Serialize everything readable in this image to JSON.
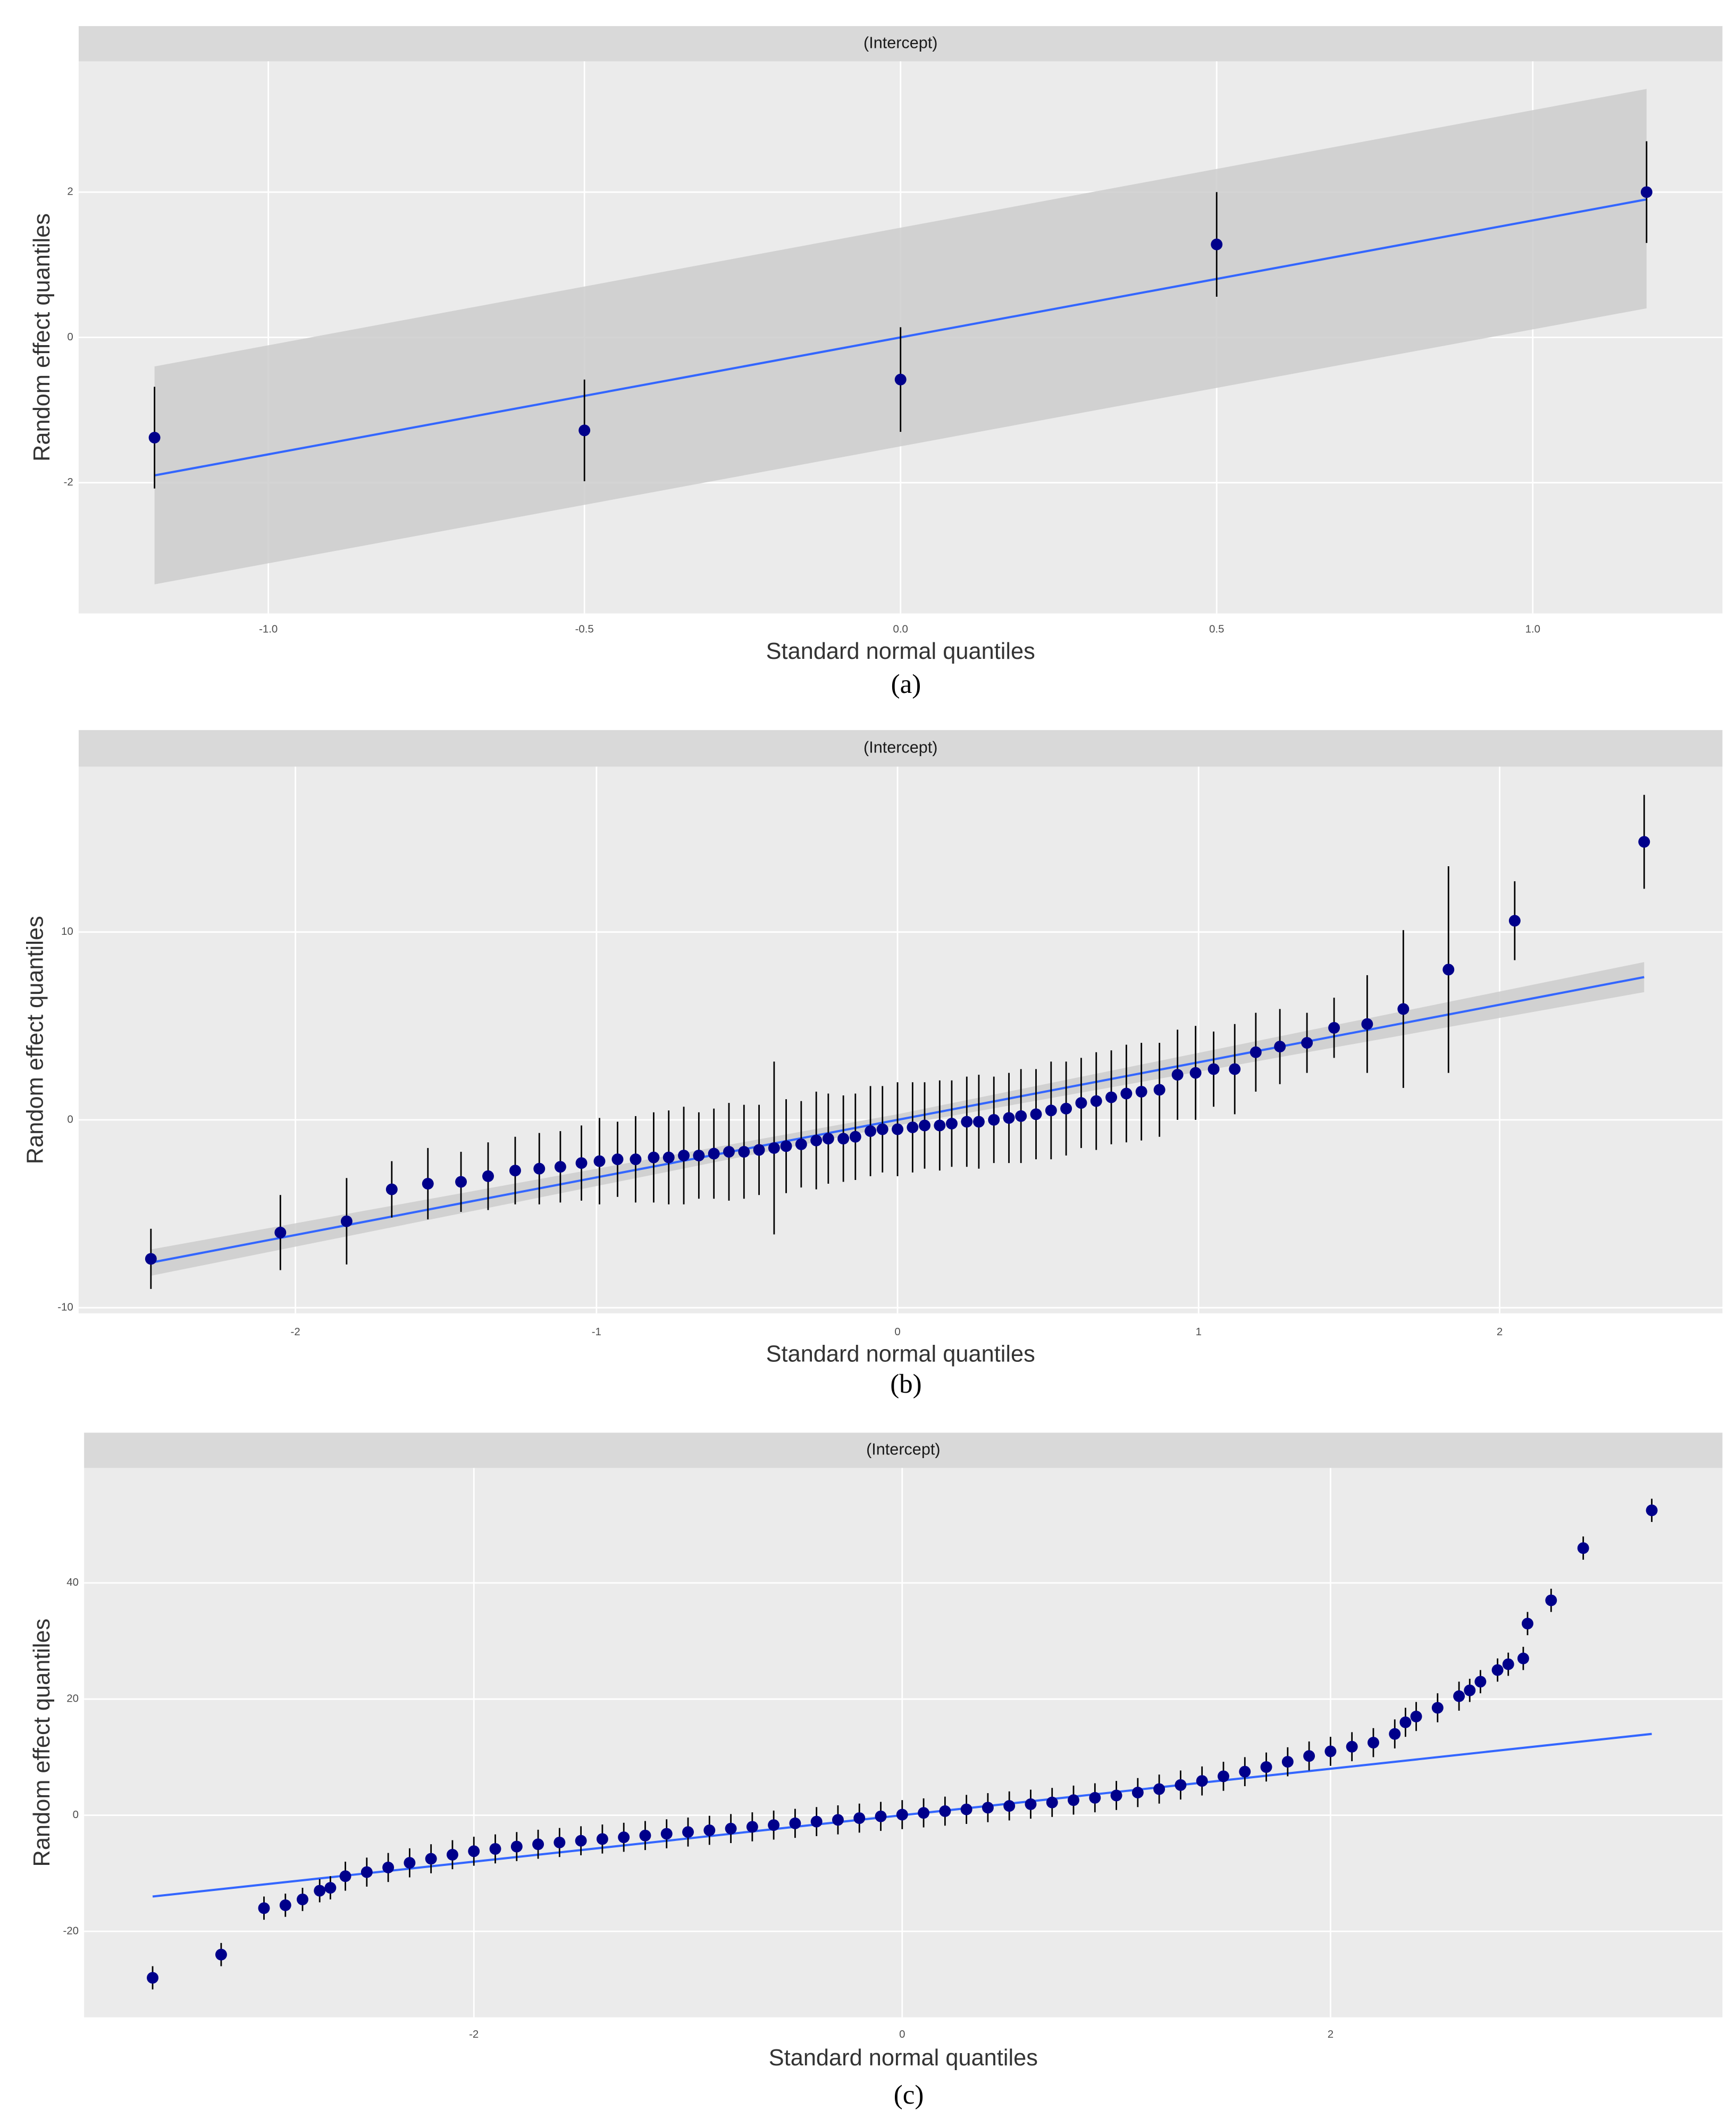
{
  "chart_data": [
    {
      "type": "scatter",
      "title": "(Intercept)",
      "caption": "(a)",
      "x_label": "Standard normal quantiles",
      "y_label": "Random effect quantiles",
      "x": [
        -1.18,
        -0.5,
        0,
        0.5,
        1.18
      ],
      "y": [
        -1.38,
        -1.28,
        -0.58,
        1.28,
        2.0
      ],
      "errors": [
        0.7,
        0.7,
        0.72,
        0.72,
        0.7
      ],
      "fit": {
        "x": [
          -1.18,
          1.18
        ],
        "y": [
          -1.9,
          1.9
        ]
      },
      "band": {
        "x": [
          -1.18,
          1.18
        ],
        "lower": [
          -3.4,
          0.4
        ],
        "upper": [
          -0.4,
          3.42
        ]
      },
      "xlim": [
        -1.3,
        1.3
      ],
      "ylim": [
        -3.8,
        3.8
      ],
      "xticks": [
        {
          "value": -1,
          "label": "-1.0"
        },
        -0.5,
        {
          "value": 0,
          "label": "0.0"
        },
        0.5,
        {
          "value": 1,
          "label": "1.0"
        }
      ],
      "yticks": [
        -2,
        0,
        2
      ],
      "point_color": "#00008b",
      "line_color": "#3366ff",
      "band_color": "#cccccc",
      "grid": true
    },
    {
      "type": "scatter",
      "title": "(Intercept)",
      "caption": "(b)",
      "x_label": "Standard normal quantiles",
      "y_label": "Random effect quantiles",
      "x": [
        -2.48,
        -2.05,
        -1.83,
        -1.68,
        -1.56,
        -1.45,
        -1.36,
        -1.27,
        -1.19,
        -1.12,
        -1.05,
        -0.99,
        -0.93,
        -0.87,
        -0.81,
        -0.76,
        -0.71,
        -0.66,
        -0.61,
        -0.56,
        -0.51,
        -0.46,
        -0.41,
        -0.37,
        -0.32,
        -0.27,
        -0.23,
        -0.18,
        -0.14,
        -0.09,
        -0.05,
        0,
        0.05,
        0.09,
        0.14,
        0.18,
        0.23,
        0.27,
        0.32,
        0.37,
        0.41,
        0.46,
        0.51,
        0.56,
        0.61,
        0.66,
        0.71,
        0.76,
        0.81,
        0.87,
        0.93,
        0.99,
        1.05,
        1.12,
        1.19,
        1.27,
        1.36,
        1.45,
        1.56,
        1.68,
        1.83,
        2.05,
        2.48
      ],
      "y": [
        -7.4,
        -6.0,
        -5.4,
        -3.7,
        -3.4,
        -3.3,
        -3.0,
        -2.7,
        -2.6,
        -2.5,
        -2.3,
        -2.2,
        -2.1,
        -2.1,
        -2.0,
        -2.0,
        -1.9,
        -1.9,
        -1.8,
        -1.7,
        -1.7,
        -1.6,
        -1.5,
        -1.4,
        -1.3,
        -1.1,
        -1.0,
        -1.0,
        -0.9,
        -0.6,
        -0.5,
        -0.5,
        -0.4,
        -0.3,
        -0.3,
        -0.2,
        -0.1,
        -0.1,
        0,
        0.1,
        0.2,
        0.3,
        0.5,
        0.6,
        0.9,
        1.0,
        1.2,
        1.4,
        1.5,
        1.6,
        2.4,
        2.5,
        2.7,
        2.7,
        3.6,
        3.9,
        4.1,
        4.9,
        5.1,
        5.9,
        8.0,
        10.6,
        14.8
      ],
      "errors": [
        1.6,
        2.0,
        2.3,
        1.5,
        1.9,
        1.6,
        1.8,
        1.8,
        1.9,
        1.9,
        2.0,
        2.3,
        2.0,
        2.3,
        2.4,
        2.5,
        2.6,
        2.3,
        2.4,
        2.6,
        2.5,
        2.4,
        4.6,
        2.5,
        2.3,
        2.6,
        2.4,
        2.3,
        2.3,
        2.4,
        2.3,
        2.5,
        2.4,
        2.3,
        2.4,
        2.3,
        2.4,
        2.5,
        2.3,
        2.4,
        2.5,
        2.4,
        2.6,
        2.5,
        2.4,
        2.6,
        2.5,
        2.6,
        2.6,
        2.5,
        2.4,
        2.5,
        2.0,
        2.4,
        2.1,
        2.0,
        1.6,
        1.6,
        2.6,
        4.2,
        5.5,
        2.1,
        2.5
      ],
      "fit": {
        "x": [
          -2.48,
          2.48
        ],
        "y": [
          -7.6,
          7.6
        ]
      },
      "band": {
        "x": [
          -2.48,
          0,
          2.48
        ],
        "lower": [
          -8.3,
          -0.3,
          6.8
        ],
        "upper": [
          -6.9,
          0.3,
          8.4
        ]
      },
      "xlim": [
        -2.72,
        2.74
      ],
      "ylim": [
        -10.3,
        18.8
      ],
      "xticks": [
        -2,
        -1,
        0,
        1,
        2
      ],
      "yticks": [
        -10,
        0,
        10
      ],
      "point_color": "#00008b",
      "line_color": "#3366ff",
      "band_color": "#cccccc",
      "grid": true
    },
    {
      "type": "scatter",
      "title": "(Intercept)",
      "caption": "(c)",
      "x_label": "Standard normal quantiles",
      "y_label": "Random effect quantiles",
      "x": [
        -3.5,
        -3.18,
        -2.98,
        -2.88,
        -2.8,
        -2.72,
        -2.67,
        -2.6,
        -2.5,
        -2.4,
        -2.3,
        -2.2,
        -2.1,
        -2.0,
        -1.9,
        -1.8,
        -1.7,
        -1.6,
        -1.5,
        -1.4,
        -1.3,
        -1.2,
        -1.1,
        -1.0,
        -0.9,
        -0.8,
        -0.7,
        -0.6,
        -0.5,
        -0.4,
        -0.3,
        -0.2,
        -0.1,
        0,
        0.1,
        0.2,
        0.3,
        0.4,
        0.5,
        0.6,
        0.7,
        0.8,
        0.9,
        1.0,
        1.1,
        1.2,
        1.3,
        1.4,
        1.5,
        1.6,
        1.7,
        1.8,
        1.9,
        2.0,
        2.1,
        2.2,
        2.3,
        2.35,
        2.4,
        2.5,
        2.6,
        2.65,
        2.7,
        2.78,
        2.83,
        2.9,
        2.92,
        3.03,
        3.18,
        3.5
      ],
      "y": [
        -28,
        -24,
        -16,
        -15.5,
        -14.5,
        -13,
        -12.5,
        -10.5,
        -9.8,
        -9.0,
        -8.2,
        -7.5,
        -6.8,
        -6.2,
        -5.8,
        -5.4,
        -5.0,
        -4.7,
        -4.4,
        -4.1,
        -3.8,
        -3.5,
        -3.2,
        -2.9,
        -2.6,
        -2.3,
        -2.0,
        -1.7,
        -1.4,
        -1.1,
        -0.8,
        -0.5,
        -0.2,
        0.1,
        0.4,
        0.7,
        1.0,
        1.3,
        1.6,
        1.9,
        2.2,
        2.6,
        3.0,
        3.4,
        3.9,
        4.5,
        5.2,
        5.9,
        6.7,
        7.5,
        8.3,
        9.2,
        10.2,
        11.0,
        11.8,
        12.5,
        14,
        16,
        17,
        18.5,
        20.5,
        21.5,
        23,
        25,
        26,
        27,
        33,
        37,
        46,
        52.5
      ],
      "errors": [
        2.0,
        2.0,
        2.0,
        2.0,
        2.0,
        2.0,
        2.0,
        2.5,
        2.5,
        2.5,
        2.5,
        2.5,
        2.5,
        2.5,
        2.5,
        2.5,
        2.5,
        2.5,
        2.5,
        2.5,
        2.5,
        2.5,
        2.5,
        2.5,
        2.5,
        2.5,
        2.5,
        2.5,
        2.5,
        2.5,
        2.5,
        2.5,
        2.5,
        2.5,
        2.5,
        2.5,
        2.5,
        2.5,
        2.5,
        2.5,
        2.5,
        2.5,
        2.5,
        2.5,
        2.5,
        2.5,
        2.5,
        2.5,
        2.5,
        2.5,
        2.5,
        2.5,
        2.5,
        2.5,
        2.5,
        2.5,
        2.5,
        2.5,
        2.5,
        2.5,
        2.5,
        2.0,
        2.0,
        2.0,
        2.0,
        2.0,
        2.0,
        2.0,
        2.0,
        2.0
      ],
      "fit": {
        "x": [
          -3.5,
          3.5
        ],
        "y": [
          -14,
          14
        ]
      },
      "xlim": [
        -3.82,
        3.83
      ],
      "ylim": [
        -34.8,
        59.8
      ],
      "xticks": [
        -2,
        0,
        2
      ],
      "yticks": [
        -20,
        0,
        20,
        40
      ],
      "point_color": "#00008b",
      "line_color": "#3366ff",
      "grid": true
    }
  ]
}
